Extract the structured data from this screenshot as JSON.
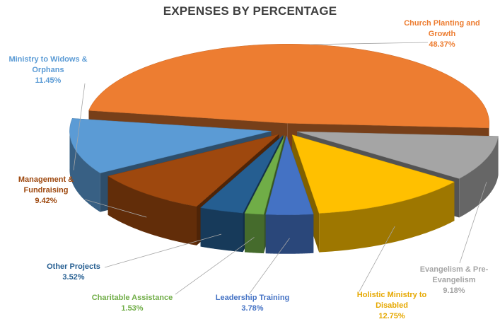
{
  "chart_data": {
    "type": "pie",
    "title": "EXPENSES BY PERCENTAGE",
    "slices": [
      {
        "label": "Church Planting and Growth",
        "pct_text": "48.37%",
        "value": 48.37,
        "color": "#ED7D31"
      },
      {
        "label": "Evangelism & Pre-Evangelism",
        "pct_text": "9.18%",
        "value": 9.18,
        "color": "#A5A5A5"
      },
      {
        "label": "Holistic Ministry to Disabled",
        "pct_text": "12.75%",
        "value": 12.75,
        "color": "#FFC000"
      },
      {
        "label": "Leadership Training",
        "pct_text": "3.78%",
        "value": 3.78,
        "color": "#4472C4"
      },
      {
        "label": "Charitable Assistance",
        "pct_text": "1.53%",
        "value": 1.53,
        "color": "#70AD47"
      },
      {
        "label": "Other Projects",
        "pct_text": "3.52%",
        "value": 3.52,
        "color": "#255E91"
      },
      {
        "label": "Management & Fundraising",
        "pct_text": "9.42%",
        "value": 9.42,
        "color": "#9E480E"
      },
      {
        "label": "Ministry to Widows & Orphans",
        "pct_text": "11.45%",
        "value": 11.45,
        "color": "#5B9BD5"
      }
    ],
    "legend": "none",
    "style": "3d-exploded"
  }
}
